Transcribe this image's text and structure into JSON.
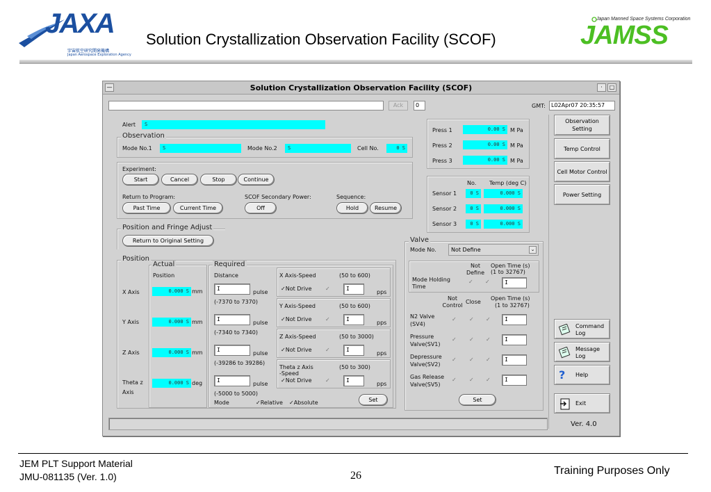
{
  "slide": {
    "jaxa_logo": "JAXA",
    "jaxa_sub_jp": "宇宙航空研究開発機構",
    "jaxa_sub_en": "Japan Aerospace Exploration Agency",
    "title": "Solution Crystallization Observation Facility (SCOF)",
    "jamss_tagline": "Japan Manned Space Systems Corporation",
    "jamss_logo": "JAMSS",
    "footer_left_1": "JEM PLT Support Material",
    "footer_left_2": "JMU-081135 (Ver. 1.0)",
    "page_number": "26",
    "footer_right": "Training Purposes Only"
  },
  "window": {
    "title": "Solution Crystallization Observation Facility (SCOF)",
    "ack_label": "Ack",
    "counter": "0",
    "gmt_label": "GMT:",
    "gmt_value": "L02Apr07 20:35:57",
    "version": "Ver. 4.0"
  },
  "alert": {
    "label": "Alert",
    "value": "S"
  },
  "observation": {
    "legend": "Observation",
    "mode1_label": "Mode No.1",
    "mode1_value": "S",
    "mode2_label": "Mode No.2",
    "mode2_value": "S",
    "cell_label": "Cell No.",
    "cell_value": "0 S"
  },
  "experiment": {
    "label": "Experiment:",
    "start": "Start",
    "cancel": "Cancel",
    "stop": "Stop",
    "continue": "Continue",
    "return_label": "Return to Program:",
    "past_time": "Past Time",
    "current_time": "Current Time",
    "secondary_label": "SCOF Secondary Power:",
    "off": "Off",
    "sequence_label": "Sequence:",
    "hold": "Hold",
    "resume": "Resume"
  },
  "fringe": {
    "legend": "Position and Fringe Adjust",
    "button": "Return to Original Setting"
  },
  "position": {
    "legend": "Position",
    "actual_legend": "Actual",
    "actual_sub": "Position",
    "required_legend": "Required",
    "required_sub": "Distance",
    "mode_label": "Mode",
    "relative": "Relative",
    "absolute": "Absolute",
    "set": "Set",
    "axes": [
      {
        "name": "X Axis",
        "actual": "0.000 S",
        "unit": "mm",
        "range": "(-7370 to 7370)",
        "speed_label": "X Axis-Speed",
        "speed_range": "(50 to 600)",
        "drive": "Not Drive"
      },
      {
        "name": "Y Axis",
        "actual": "0.000 S",
        "unit": "mm",
        "range": "(-7340 to 7340)",
        "speed_label": "Y Axis-Speed",
        "speed_range": "(50 to 600)",
        "drive": "Not Drive"
      },
      {
        "name": "Z Axis",
        "actual": "0.000 S",
        "unit": "mm",
        "range": "(-39286 to 39286)",
        "speed_label": "Z Axis-Speed",
        "speed_range": "(50 to 3000)",
        "drive": "Not Drive"
      },
      {
        "name": "Theta z",
        "name2": "Axis",
        "actual": "0.000 S",
        "unit": "deg",
        "range": "(-5000 to 5000)",
        "speed_label": "Theta z Axis",
        "speed_label2": "-Speed",
        "speed_range": "(50 to 300)",
        "drive": "Not Drive"
      }
    ],
    "input_placeholder": "I",
    "pulse_unit": "pulse",
    "pps_unit": "pps"
  },
  "pressure": [
    {
      "label": "Press 1",
      "value": "0.00 S",
      "unit": "M Pa"
    },
    {
      "label": "Press 2",
      "value": "0.00 S",
      "unit": "M Pa"
    },
    {
      "label": "Press 3",
      "value": "0.00 S",
      "unit": "M Pa"
    }
  ],
  "sensors": {
    "no_header": "No.",
    "temp_header": "Temp (deg C)",
    "items": [
      {
        "label": "Sensor 1",
        "no": "0 S",
        "temp": "0.000 S"
      },
      {
        "label": "Sensor 2",
        "no": "0 S",
        "temp": "0.000 S"
      },
      {
        "label": "Sensor 3",
        "no": "0 S",
        "temp": "0.000 S"
      }
    ]
  },
  "valve": {
    "legend": "Valve",
    "mode_label": "Mode No.",
    "mode_value": "Not Define",
    "not_define": "Not Define",
    "open_time_1": "Open Time (s)",
    "open_time_range": "(1 to 32767)",
    "mode_holding": "Mode Holding Time",
    "not_control": "Not Control",
    "close": "Close",
    "valves": [
      {
        "name": "N2 Valve",
        "code": "(SV4)"
      },
      {
        "name": "Pressure",
        "code": "Valve(SV1)"
      },
      {
        "name": "Depressure",
        "code": "Valve(SV2)"
      },
      {
        "name": "Gas Release",
        "code": "Valve(SV5)"
      }
    ],
    "set": "Set"
  },
  "right_buttons": {
    "observation_setting": "Observation Setting",
    "temp_control": "Temp Control",
    "cell_motor_control": "Cell Motor Control",
    "power_setting": "Power Setting",
    "command_log": "Command Log",
    "message_log": "Message Log",
    "help": "Help",
    "exit": "Exit"
  },
  "colors": {
    "field": "#00ffff",
    "window_bg": "#d2d2d2",
    "jaxa_blue": "#1b4fa0",
    "jamss_green": "#4cbf23"
  }
}
